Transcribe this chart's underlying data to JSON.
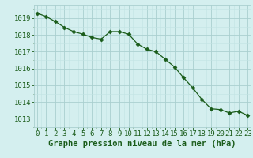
{
  "x": [
    0,
    1,
    2,
    3,
    4,
    5,
    6,
    7,
    8,
    9,
    10,
    11,
    12,
    13,
    14,
    15,
    16,
    17,
    18,
    19,
    20,
    21,
    22,
    23
  ],
  "y": [
    1019.3,
    1019.1,
    1018.8,
    1018.45,
    1018.2,
    1018.05,
    1017.85,
    1017.75,
    1018.2,
    1018.2,
    1018.05,
    1017.45,
    1017.15,
    1017.0,
    1016.55,
    1016.1,
    1015.45,
    1014.85,
    1014.15,
    1013.6,
    1013.55,
    1013.35,
    1013.45,
    1013.2
  ],
  "line_color": "#1a5c1a",
  "marker": "D",
  "marker_size": 2.5,
  "bg_color": "#d4efef",
  "grid_color_major": "#aacfcf",
  "grid_color_minor": "#c2e4e4",
  "xlabel": "Graphe pression niveau de la mer (hPa)",
  "xlabel_color": "#1a5c1a",
  "xlabel_fontsize": 7.5,
  "tick_label_color": "#1a5c1a",
  "tick_fontsize": 6.5,
  "ylim": [
    1012.5,
    1019.8
  ],
  "yticks": [
    1013,
    1014,
    1015,
    1016,
    1017,
    1018,
    1019
  ],
  "xticks": [
    0,
    1,
    2,
    3,
    4,
    5,
    6,
    7,
    8,
    9,
    10,
    11,
    12,
    13,
    14,
    15,
    16,
    17,
    18,
    19,
    20,
    21,
    22,
    23
  ],
  "xlim": [
    -0.3,
    23.3
  ]
}
